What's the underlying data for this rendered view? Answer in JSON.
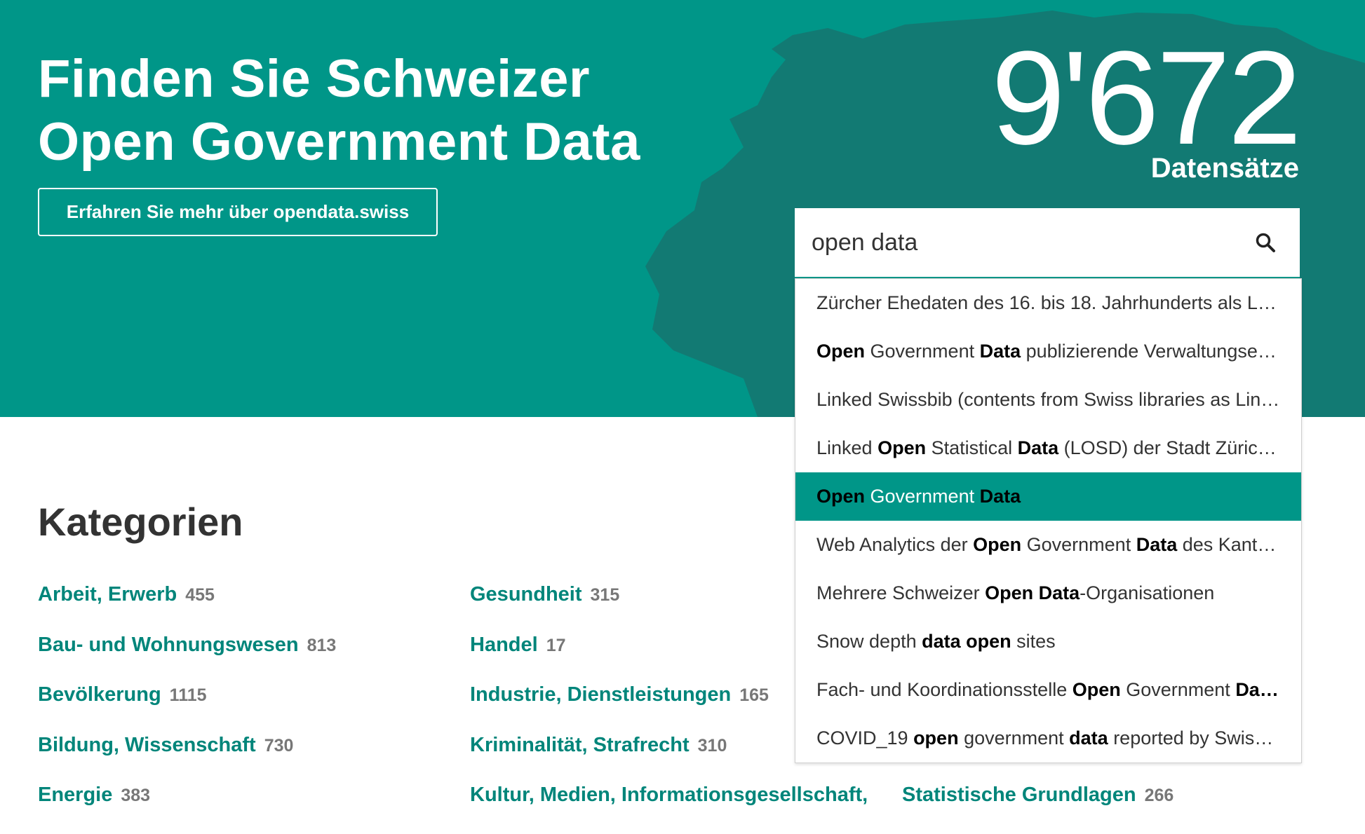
{
  "hero": {
    "title_line1": "Finden Sie Schweizer",
    "title_line2": "Open Government Data",
    "about_button": "Erfahren Sie mehr über opendata.swiss",
    "count": "9'672",
    "count_label": "Datensätze"
  },
  "search": {
    "value": "open data",
    "suggestions": [
      [
        {
          "t": "Zürcher Ehedaten des 16. bis 18. Jahrhunderts als Li…",
          "b": false
        }
      ],
      [
        {
          "t": "Open",
          "b": true
        },
        {
          "t": " Government ",
          "b": false
        },
        {
          "t": "Data",
          "b": true
        },
        {
          "t": " publizierende Verwaltungse…",
          "b": false
        }
      ],
      [
        {
          "t": "Linked Swissbib (contents from Swiss libraries as Lin…",
          "b": false
        }
      ],
      [
        {
          "t": "Linked ",
          "b": false
        },
        {
          "t": "Open",
          "b": true
        },
        {
          "t": " Statistical ",
          "b": false
        },
        {
          "t": "Data",
          "b": true
        },
        {
          "t": " (LOSD) der Stadt Zürich…",
          "b": false
        }
      ],
      [
        {
          "t": "Open",
          "b": true
        },
        {
          "t": " Government ",
          "b": false
        },
        {
          "t": "Data",
          "b": true
        }
      ],
      [
        {
          "t": "Web Analytics der ",
          "b": false
        },
        {
          "t": "Open",
          "b": true
        },
        {
          "t": " Government ",
          "b": false
        },
        {
          "t": "Data",
          "b": true
        },
        {
          "t": " des Kanto…",
          "b": false
        }
      ],
      [
        {
          "t": "Mehrere Schweizer ",
          "b": false
        },
        {
          "t": "Open",
          "b": true
        },
        {
          "t": " ",
          "b": false
        },
        {
          "t": "Data",
          "b": true
        },
        {
          "t": "-Organisationen",
          "b": false
        }
      ],
      [
        {
          "t": "Snow depth ",
          "b": false
        },
        {
          "t": "data",
          "b": true
        },
        {
          "t": " ",
          "b": false
        },
        {
          "t": "open",
          "b": true
        },
        {
          "t": " sites",
          "b": false
        }
      ],
      [
        {
          "t": "Fach- und Koordinationsstelle ",
          "b": false
        },
        {
          "t": "Open",
          "b": true
        },
        {
          "t": " Government ",
          "b": false
        },
        {
          "t": "Da…",
          "b": true
        }
      ],
      [
        {
          "t": "COVID_19 ",
          "b": false
        },
        {
          "t": "open",
          "b": true
        },
        {
          "t": " government ",
          "b": false
        },
        {
          "t": "data",
          "b": true
        },
        {
          "t": " reported by Swiss …",
          "b": false
        }
      ]
    ],
    "active_index": 4
  },
  "categories": {
    "title": "Kategorien",
    "columns": [
      [
        {
          "name": "Arbeit, Erwerb",
          "count": "455"
        },
        {
          "name": "Bau- und Wohnungswesen",
          "count": "813"
        },
        {
          "name": "Bevölkerung",
          "count": "1115"
        },
        {
          "name": "Bildung, Wissenschaft",
          "count": "730"
        },
        {
          "name": "Energie",
          "count": "383"
        }
      ],
      [
        {
          "name": "Gesundheit",
          "count": "315"
        },
        {
          "name": "Handel",
          "count": "17"
        },
        {
          "name": "Industrie, Dienstleistungen",
          "count": "165"
        },
        {
          "name": "Kriminalität, Strafrecht",
          "count": "310"
        },
        {
          "name": "Kultur, Medien, Informationsgesellschaft,",
          "count": ""
        }
      ],
      [
        {
          "name": "",
          "count": ""
        },
        {
          "name": "",
          "count": ""
        },
        {
          "name": "",
          "count": ""
        },
        {
          "name": "",
          "count": ""
        },
        {
          "name": "Statistische Grundlagen",
          "count": "266"
        }
      ]
    ]
  },
  "colors": {
    "brand": "#009688",
    "map": "#127a73",
    "link": "#00857a"
  }
}
